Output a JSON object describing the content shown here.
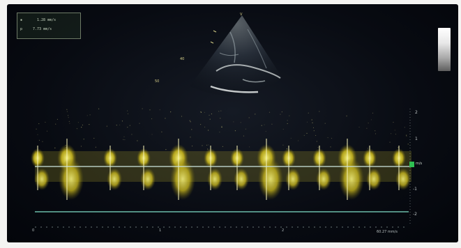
{
  "info_box": {
    "line1_prefix": "▪",
    "line1_value": "1.28 mm/s",
    "line2_prefix": "p",
    "line2_value": "7.73 mm/s"
  },
  "velocity_scale": {
    "ticks": [
      "2",
      "1",
      "-1",
      "-2"
    ],
    "unit": "m/s"
  },
  "sector_marker": "V",
  "sector_labels": [
    "40",
    "50"
  ],
  "time_marks": [
    "0",
    "1",
    "2"
  ],
  "sweep_readout": "60.27 mm/s",
  "colors": {
    "doppler": "#e6d432",
    "baseline": "#7fe0c8",
    "cursor_marker": "#2fbf52"
  }
}
